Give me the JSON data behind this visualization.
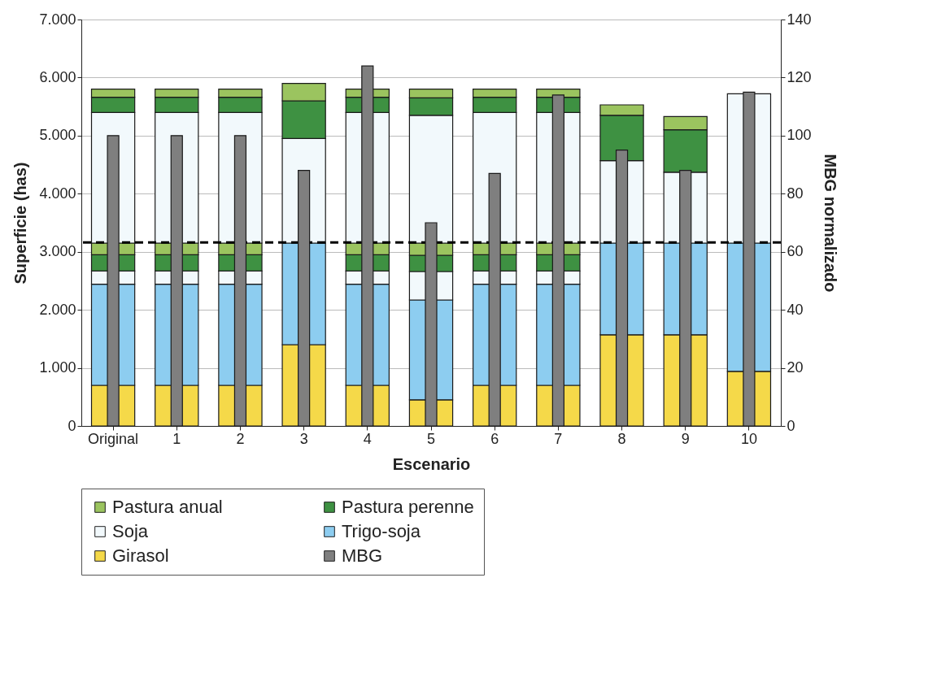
{
  "chart_data": {
    "type": "bar",
    "stacked": true,
    "xlabel": "Escenario",
    "ylabel": "Superficie (has)",
    "y2label": "MBG normalizado",
    "categories": [
      "Original",
      "1",
      "2",
      "3",
      "4",
      "5",
      "6",
      "7",
      "8",
      "9",
      "10"
    ],
    "series": [
      {
        "name": "Girasol",
        "color": "#f5d949",
        "values": [
          700,
          700,
          700,
          1400,
          700,
          450,
          700,
          700,
          1570,
          1570,
          940
        ]
      },
      {
        "name": "Trigo-soja",
        "color": "#8dcdf0",
        "values": [
          1740,
          1740,
          1740,
          1750,
          1740,
          1720,
          1740,
          1740,
          1580,
          1580,
          2210
        ]
      },
      {
        "name": "Soja",
        "color": "#f2f9fc",
        "values": [
          230,
          230,
          230,
          null,
          230,
          490,
          230,
          230,
          null,
          null,
          null
        ]
      },
      {
        "name": "Pastura perenne",
        "color": "#3e9142",
        "values": [
          280,
          280,
          280,
          null,
          280,
          280,
          280,
          280,
          null,
          null,
          null
        ]
      },
      {
        "name": "Pastura anual",
        "color": "#9bc45f",
        "values": [
          200,
          200,
          200,
          null,
          200,
          210,
          200,
          200,
          null,
          null,
          null
        ]
      },
      {
        "color": "#f2f9fc",
        "values": [
          2250,
          2250,
          2250,
          1800,
          2250,
          2200,
          2250,
          2250,
          1420,
          1220,
          2570
        ]
      },
      {
        "color": "#3e9142",
        "values": [
          260,
          260,
          260,
          650,
          260,
          300,
          260,
          260,
          780,
          730,
          null
        ]
      },
      {
        "color": "#9bc45f",
        "values": [
          140,
          140,
          140,
          300,
          140,
          150,
          140,
          140,
          180,
          230,
          null
        ]
      },
      {
        "name": "MBG",
        "color": "#7f7f7f",
        "axis": "y2",
        "values": [
          100,
          100,
          100,
          88,
          124,
          70,
          87,
          114,
          95,
          88,
          115
        ]
      }
    ],
    "ylim": [
      0,
      7000
    ],
    "yticks": [
      0,
      {
        "value": 1000,
        "label": "1.000"
      },
      {
        "value": 2000,
        "label": "2.000"
      },
      {
        "value": 3000,
        "label": "3.000"
      },
      {
        "value": 4000,
        "label": "4.000"
      },
      {
        "value": 5000,
        "label": "5.000"
      },
      {
        "value": 6000,
        "label": "6.000"
      },
      {
        "value": 7000,
        "label": "7.000"
      }
    ],
    "y2lim": [
      0,
      140
    ],
    "y2ticks": [
      0,
      20,
      40,
      60,
      80,
      100,
      120,
      140
    ],
    "ref_lines": [
      {
        "axis": "y",
        "value": 3160,
        "color": "#000000",
        "line_style": "dashed"
      }
    ],
    "grid": "y",
    "legend": "bottom"
  }
}
